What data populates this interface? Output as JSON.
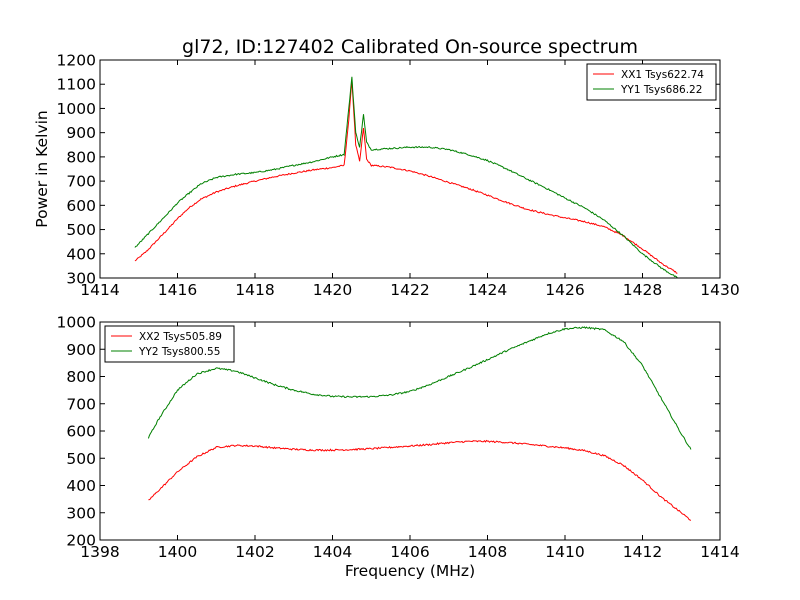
{
  "figure": {
    "title": "gl72, ID:127402 Calibrated On-source spectrum",
    "xlabel": "Frequency (MHz)",
    "ylabel": "Power in Kelvin"
  },
  "chart_data": [
    {
      "type": "line",
      "xlim": [
        1414,
        1430
      ],
      "ylim": [
        300,
        1200
      ],
      "xticks": [
        1414,
        1416,
        1418,
        1420,
        1422,
        1424,
        1426,
        1428,
        1430
      ],
      "yticks": [
        300,
        400,
        500,
        600,
        700,
        800,
        900,
        1000,
        1100,
        1200
      ],
      "legend_position": "top-right",
      "grid": false,
      "series": [
        {
          "name": "XX1 Tsys622.74",
          "color": "#ff0000",
          "x": [
            1414.9,
            1415.2,
            1415.5,
            1415.8,
            1416.0,
            1416.3,
            1416.6,
            1417.0,
            1417.5,
            1418.0,
            1418.5,
            1419.0,
            1419.5,
            1420.0,
            1420.3,
            1420.42,
            1420.5,
            1420.6,
            1420.7,
            1420.8,
            1420.88,
            1421.0,
            1421.5,
            1422.0,
            1422.5,
            1423.0,
            1423.5,
            1424.0,
            1424.5,
            1425.0,
            1425.5,
            1426.0,
            1426.5,
            1427.0,
            1427.5,
            1428.0,
            1428.5,
            1428.9
          ],
          "y": [
            370,
            410,
            460,
            510,
            545,
            590,
            625,
            655,
            680,
            700,
            718,
            733,
            746,
            756,
            765,
            950,
            1120,
            850,
            780,
            920,
            790,
            765,
            757,
            742,
            720,
            695,
            670,
            642,
            612,
            585,
            565,
            548,
            533,
            512,
            475,
            420,
            360,
            320
          ]
        },
        {
          "name": "YY1 Tsys686.22",
          "color": "#008000",
          "x": [
            1414.9,
            1415.2,
            1415.5,
            1415.8,
            1416.0,
            1416.3,
            1416.6,
            1417.0,
            1417.5,
            1418.0,
            1418.5,
            1419.0,
            1419.5,
            1420.0,
            1420.3,
            1420.42,
            1420.5,
            1420.6,
            1420.7,
            1420.8,
            1420.88,
            1421.0,
            1421.5,
            1422.0,
            1422.5,
            1423.0,
            1423.5,
            1424.0,
            1424.5,
            1425.0,
            1425.5,
            1426.0,
            1426.5,
            1427.0,
            1427.5,
            1428.0,
            1428.5,
            1428.9
          ],
          "y": [
            425,
            475,
            525,
            575,
            610,
            650,
            688,
            715,
            728,
            735,
            748,
            765,
            780,
            800,
            810,
            1000,
            1130,
            900,
            840,
            975,
            860,
            830,
            835,
            840,
            840,
            830,
            810,
            785,
            750,
            710,
            672,
            630,
            590,
            540,
            475,
            400,
            340,
            300
          ]
        }
      ]
    },
    {
      "type": "line",
      "xlim": [
        1398,
        1414
      ],
      "ylim": [
        200,
        1000
      ],
      "xticks": [
        1398,
        1400,
        1402,
        1404,
        1406,
        1408,
        1410,
        1412,
        1414
      ],
      "yticks": [
        200,
        300,
        400,
        500,
        600,
        700,
        800,
        900,
        1000
      ],
      "legend_position": "top-left",
      "grid": false,
      "series": [
        {
          "name": "XX2 Tsys505.89",
          "color": "#ff0000",
          "x": [
            1399.25,
            1399.5,
            1400.0,
            1400.5,
            1401.0,
            1401.5,
            1402.0,
            1402.5,
            1403.0,
            1403.5,
            1404.0,
            1404.5,
            1405.0,
            1405.5,
            1406.0,
            1406.5,
            1407.0,
            1407.5,
            1408.0,
            1408.5,
            1409.0,
            1409.5,
            1410.0,
            1410.5,
            1411.0,
            1411.5,
            1412.0,
            1412.5,
            1413.0,
            1413.25
          ],
          "y": [
            345,
            380,
            450,
            505,
            540,
            547,
            545,
            538,
            533,
            530,
            530,
            532,
            535,
            540,
            545,
            550,
            557,
            562,
            562,
            558,
            552,
            545,
            538,
            528,
            510,
            475,
            420,
            355,
            300,
            272
          ]
        },
        {
          "name": "YY2 Tsys800.55",
          "color": "#008000",
          "x": [
            1399.25,
            1399.5,
            1400.0,
            1400.5,
            1401.0,
            1401.5,
            1402.0,
            1402.5,
            1403.0,
            1403.5,
            1404.0,
            1404.5,
            1405.0,
            1405.5,
            1406.0,
            1406.5,
            1407.0,
            1407.5,
            1408.0,
            1408.5,
            1409.0,
            1409.5,
            1410.0,
            1410.5,
            1411.0,
            1411.5,
            1412.0,
            1412.5,
            1413.0,
            1413.25
          ],
          "y": [
            575,
            640,
            750,
            810,
            830,
            820,
            795,
            770,
            750,
            735,
            727,
            725,
            726,
            732,
            745,
            770,
            800,
            830,
            862,
            895,
            925,
            955,
            975,
            980,
            972,
            930,
            840,
            715,
            590,
            532
          ]
        }
      ]
    }
  ]
}
